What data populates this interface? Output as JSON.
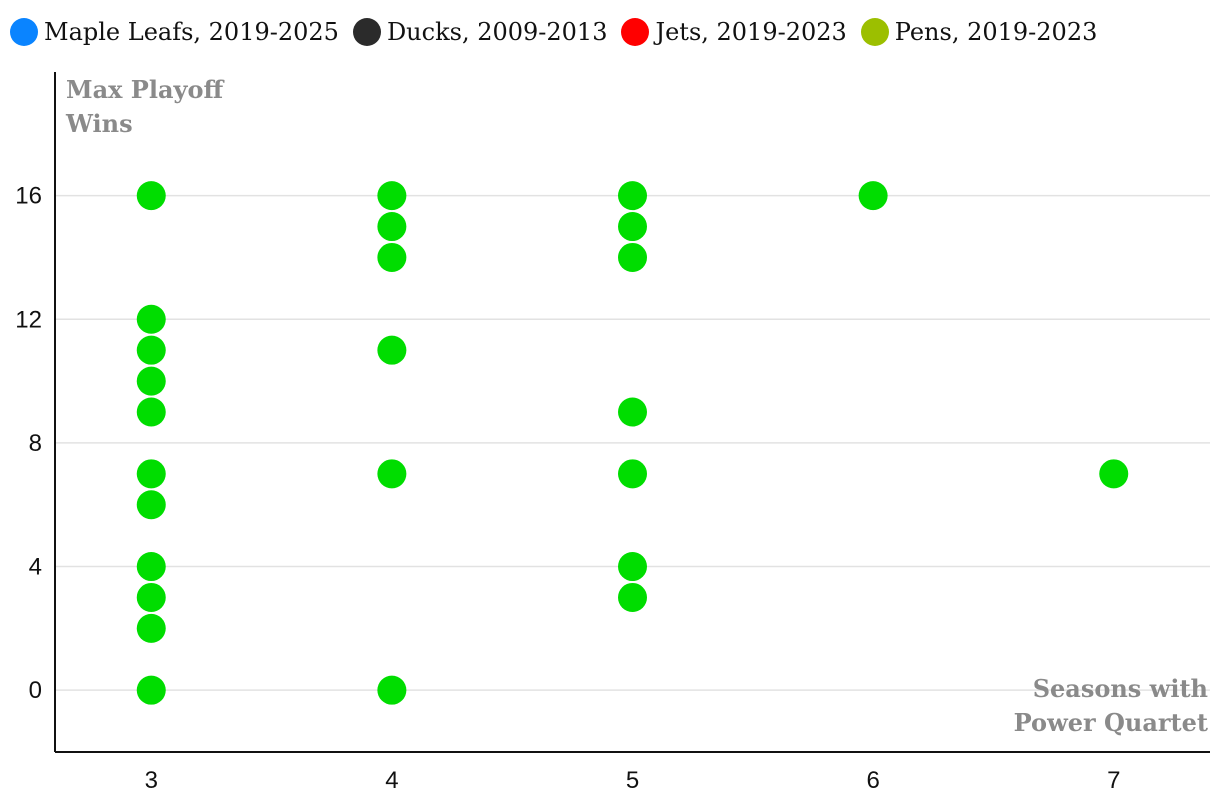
{
  "chart_data": {
    "type": "scatter",
    "legend": [
      {
        "label": "Maple Leafs, 2019-2025",
        "color": "#0a84ff"
      },
      {
        "label": "Ducks, 2009-2013",
        "color": "#2b2b2b"
      },
      {
        "label": "Jets, 2019-2023",
        "color": "#ff0000"
      },
      {
        "label": "Pens, 2019-2023",
        "color": "#9cbf00"
      }
    ],
    "legend_position": "top-left",
    "ylabel_lines": [
      "Max Playoff",
      "Wins"
    ],
    "xlabel_lines": [
      "Seasons with",
      "Power Quartet"
    ],
    "x_ticks": [
      3,
      4,
      5,
      6,
      7
    ],
    "y_ticks": [
      0,
      4,
      8,
      12,
      16
    ],
    "x_range": [
      2.6,
      7.4
    ],
    "y_range": [
      -2,
      20
    ],
    "grid": "horizontal",
    "point_color": "#00dd00",
    "points": [
      {
        "x": 3,
        "y": 16
      },
      {
        "x": 3,
        "y": 12
      },
      {
        "x": 3,
        "y": 11
      },
      {
        "x": 3,
        "y": 10
      },
      {
        "x": 3,
        "y": 9
      },
      {
        "x": 3,
        "y": 7
      },
      {
        "x": 3,
        "y": 6
      },
      {
        "x": 3,
        "y": 4
      },
      {
        "x": 3,
        "y": 3
      },
      {
        "x": 3,
        "y": 2
      },
      {
        "x": 3,
        "y": 0
      },
      {
        "x": 4,
        "y": 16
      },
      {
        "x": 4,
        "y": 15
      },
      {
        "x": 4,
        "y": 14
      },
      {
        "x": 4,
        "y": 11
      },
      {
        "x": 4,
        "y": 7
      },
      {
        "x": 4,
        "y": 0
      },
      {
        "x": 5,
        "y": 16
      },
      {
        "x": 5,
        "y": 15
      },
      {
        "x": 5,
        "y": 14
      },
      {
        "x": 5,
        "y": 9
      },
      {
        "x": 5,
        "y": 7
      },
      {
        "x": 5,
        "y": 4
      },
      {
        "x": 5,
        "y": 3
      },
      {
        "x": 6,
        "y": 16
      },
      {
        "x": 7,
        "y": 7
      }
    ]
  }
}
